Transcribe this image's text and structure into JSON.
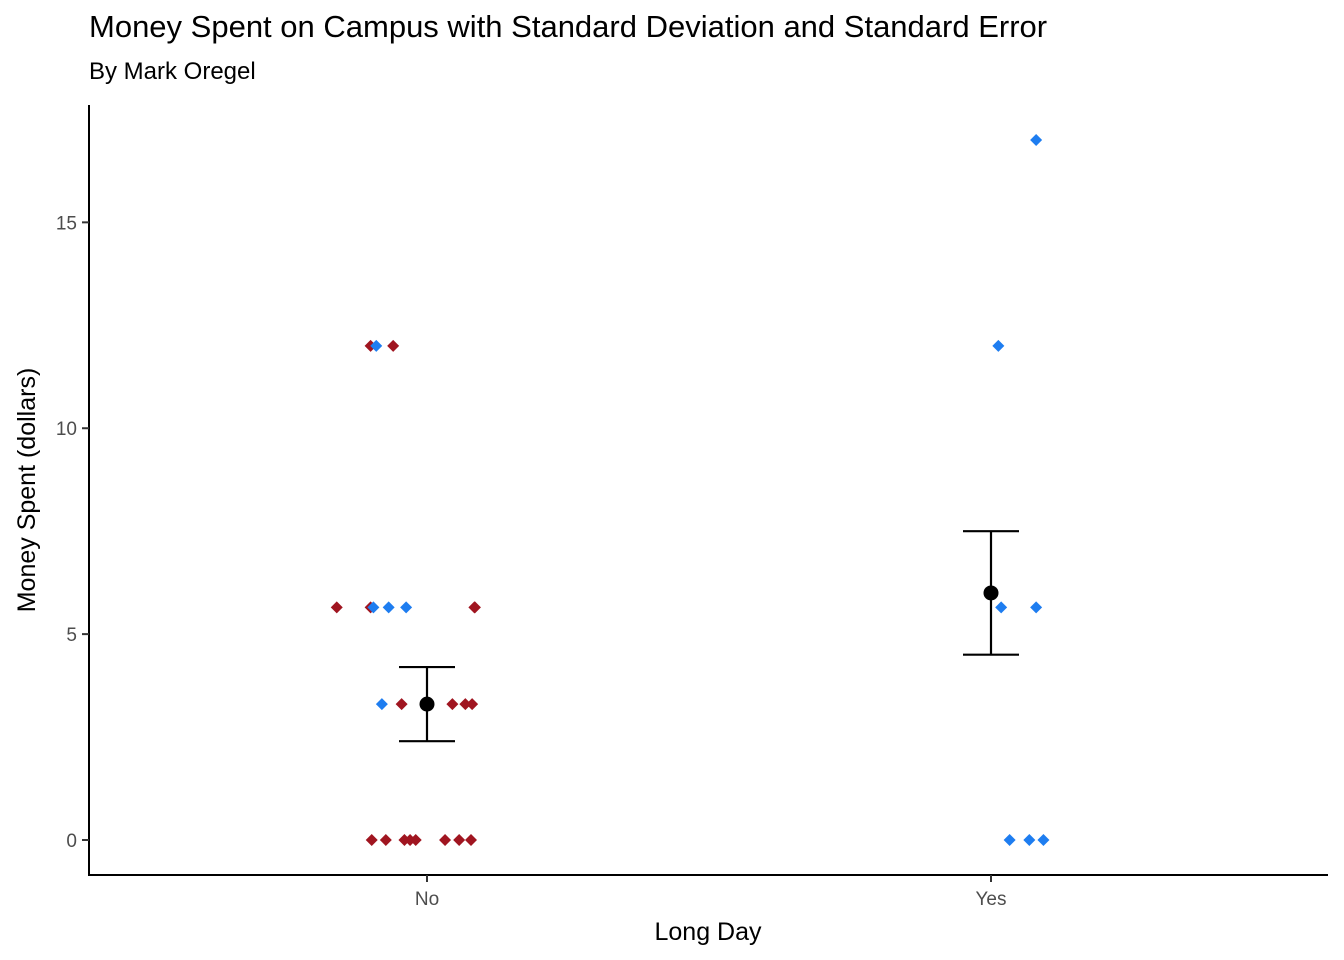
{
  "chart_data": {
    "type": "scatter",
    "title": "Money Spent on Campus with Standard Deviation and Standard Error",
    "subtitle": "By Mark Oregel",
    "xlabel": "Long Day",
    "ylabel": "Money Spent (dollars)",
    "categories": [
      "No",
      "Yes"
    ],
    "y_ticks": [
      0,
      5,
      10,
      15
    ],
    "ylim": [
      -0.85,
      17.85
    ],
    "grid": false,
    "colors": {
      "No": "#a01520",
      "Yes": "#1e7df0",
      "summary": "#000000"
    },
    "series": [
      {
        "category": "No",
        "points": [
          {
            "x": -0.1,
            "y": 12
          },
          {
            "x": -0.06,
            "y": 12
          },
          {
            "x": -0.16,
            "y": 5.65
          },
          {
            "x": -0.1,
            "y": 5.65
          },
          {
            "x": 0.084,
            "y": 5.65
          },
          {
            "x": 0.085,
            "y": 5.65
          },
          {
            "x": -0.045,
            "y": 3.3
          },
          {
            "x": 0.045,
            "y": 3.3
          },
          {
            "x": 0.068,
            "y": 3.3
          },
          {
            "x": 0.08,
            "y": 3.3
          },
          {
            "x": -0.098,
            "y": 0
          },
          {
            "x": -0.073,
            "y": 0
          },
          {
            "x": -0.04,
            "y": 0
          },
          {
            "x": -0.03,
            "y": 0
          },
          {
            "x": -0.02,
            "y": 0
          },
          {
            "x": 0.032,
            "y": 0
          },
          {
            "x": 0.057,
            "y": 0
          },
          {
            "x": 0.078,
            "y": 0
          }
        ],
        "mean": 3.3,
        "error_low": 2.4,
        "error_high": 4.2
      },
      {
        "category": "Yes",
        "points": [
          {
            "x": 1.08,
            "y": 17
          },
          {
            "x": -0.09,
            "y": 12
          },
          {
            "x": 1.013,
            "y": 12
          },
          {
            "x": -0.095,
            "y": 5.65
          },
          {
            "x": -0.068,
            "y": 5.65
          },
          {
            "x": -0.037,
            "y": 5.65
          },
          {
            "x": 1.018,
            "y": 5.65
          },
          {
            "x": 1.08,
            "y": 5.65
          },
          {
            "x": -0.08,
            "y": 3.3
          },
          {
            "x": 1.033,
            "y": 0
          },
          {
            "x": 1.068,
            "y": 0
          },
          {
            "x": 1.093,
            "y": 0
          }
        ],
        "mean": 6.0,
        "error_low": 4.5,
        "error_high": 7.5
      }
    ]
  }
}
